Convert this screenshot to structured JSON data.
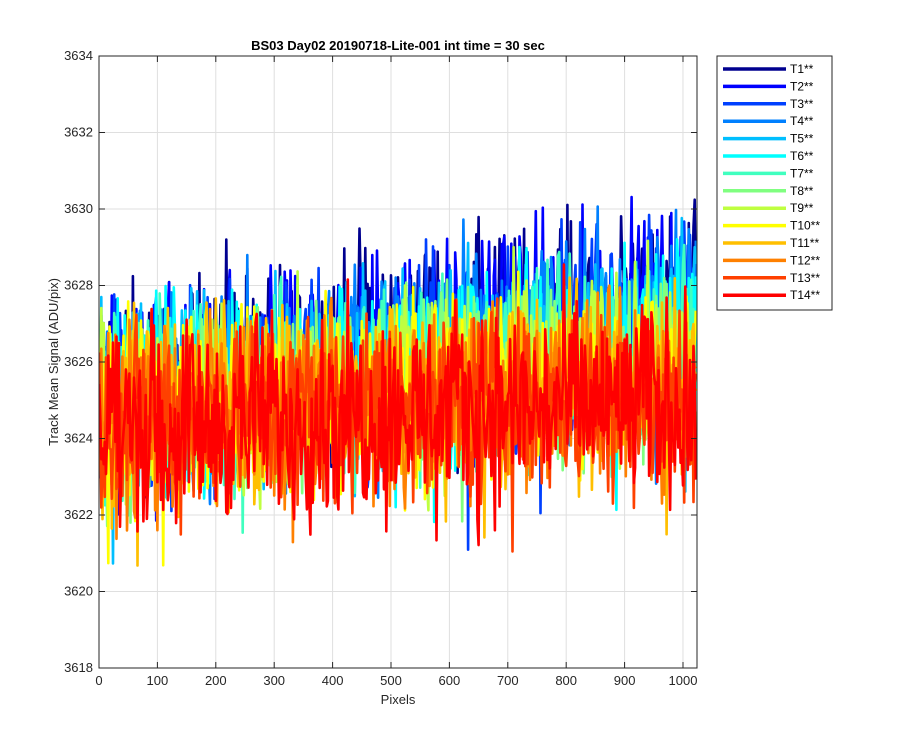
{
  "chart_data": {
    "type": "line",
    "title": "BS03 Day02 20190718-Lite-001 int time = 30 sec",
    "xlabel": "Pixels",
    "ylabel": "Track Mean Signal (ADU/pix)",
    "xlim": [
      0,
      1024
    ],
    "ylim": [
      3618,
      3634
    ],
    "xticks": [
      0,
      100,
      200,
      300,
      400,
      500,
      600,
      700,
      800,
      900,
      1000
    ],
    "yticks": [
      3618,
      3620,
      3622,
      3624,
      3626,
      3628,
      3630,
      3632,
      3634
    ],
    "grid": true,
    "legend_position": "outside-top-right",
    "series_note_values": "per-pixel noisy traces; values encoded as mean_start/mean_end with noise amplitude, estimated from the plot",
    "series": [
      {
        "name": "T1**",
        "color": "#00008f",
        "mean_start": 3625.2,
        "mean_end": 3627.6,
        "amplitude": 2.6
      },
      {
        "name": "T2**",
        "color": "#0000ff",
        "mean_start": 3625.1,
        "mean_end": 3627.4,
        "amplitude": 2.6
      },
      {
        "name": "T3**",
        "color": "#0040ff",
        "mean_start": 3625.0,
        "mean_end": 3627.2,
        "amplitude": 2.5
      },
      {
        "name": "T4**",
        "color": "#0080ff",
        "mean_start": 3624.9,
        "mean_end": 3627.0,
        "amplitude": 2.5
      },
      {
        "name": "T5**",
        "color": "#00bfff",
        "mean_start": 3624.9,
        "mean_end": 3626.8,
        "amplitude": 2.5
      },
      {
        "name": "T6**",
        "color": "#00ffff",
        "mean_start": 3624.8,
        "mean_end": 3626.6,
        "amplitude": 2.5
      },
      {
        "name": "T7**",
        "color": "#40ffbf",
        "mean_start": 3624.8,
        "mean_end": 3626.4,
        "amplitude": 2.5
      },
      {
        "name": "T8**",
        "color": "#80ff80",
        "mean_start": 3624.7,
        "mean_end": 3626.2,
        "amplitude": 2.4
      },
      {
        "name": "T9**",
        "color": "#bfff40",
        "mean_start": 3624.7,
        "mean_end": 3626.0,
        "amplitude": 2.4
      },
      {
        "name": "T10**",
        "color": "#ffff00",
        "mean_start": 3624.6,
        "mean_end": 3625.8,
        "amplitude": 2.4
      },
      {
        "name": "T11**",
        "color": "#ffbf00",
        "mean_start": 3624.6,
        "mean_end": 3625.6,
        "amplitude": 2.4
      },
      {
        "name": "T12**",
        "color": "#ff8000",
        "mean_start": 3624.5,
        "mean_end": 3625.4,
        "amplitude": 2.4
      },
      {
        "name": "T13**",
        "color": "#ff4000",
        "mean_start": 3624.5,
        "mean_end": 3625.2,
        "amplitude": 2.5
      },
      {
        "name": "T14**",
        "color": "#ff0000",
        "mean_start": 3624.4,
        "mean_end": 3625.0,
        "amplitude": 2.6
      }
    ]
  }
}
